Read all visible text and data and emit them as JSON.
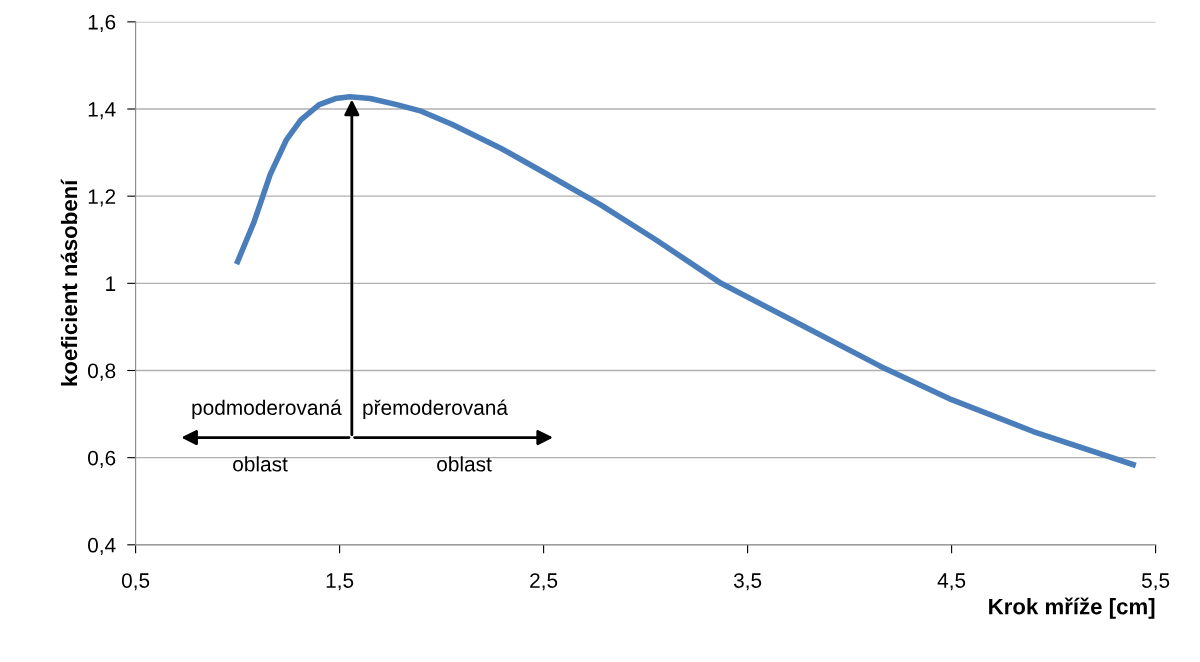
{
  "chart_data": {
    "type": "line",
    "xlabel": "Krok mříže [cm]",
    "ylabel": "koeficient násobení",
    "x": [
      1.0,
      1.08,
      1.16,
      1.24,
      1.31,
      1.4,
      1.48,
      1.55,
      1.65,
      1.78,
      1.9,
      2.05,
      2.29,
      2.5,
      2.78,
      3.05,
      3.37,
      3.7,
      4.15,
      4.5,
      4.9,
      5.39
    ],
    "series": [
      {
        "color": "#4a7ebb",
        "values": [
          1.05,
          1.14,
          1.25,
          1.33,
          1.375,
          1.41,
          1.424,
          1.428,
          1.424,
          1.41,
          1.395,
          1.365,
          1.31,
          1.255,
          1.18,
          1.1,
          1.0,
          0.92,
          0.81,
          0.733,
          0.66,
          0.584
        ]
      }
    ],
    "xlim": [
      0.5,
      5.5
    ],
    "xticks": [
      {
        "value": 0.5,
        "label": "0,5"
      },
      {
        "value": 1.5,
        "label": "1,5"
      },
      {
        "value": 2.5,
        "label": "2,5"
      },
      {
        "value": 3.5,
        "label": "3,5"
      },
      {
        "value": 4.5,
        "label": "4,5"
      },
      {
        "value": 5.5,
        "label": "5,5"
      }
    ],
    "ylim": [
      0.4,
      1.6
    ],
    "yticks": [
      {
        "value": 0.4,
        "label": "0,4"
      },
      {
        "value": 0.6,
        "label": "0,6"
      },
      {
        "value": 0.8,
        "label": "0,8"
      },
      {
        "value": 1,
        "label": "1"
      },
      {
        "value": 1.2,
        "label": "1,2"
      },
      {
        "value": 1.4,
        "label": "1,4"
      },
      {
        "value": 1.6,
        "label": "1,6"
      }
    ],
    "grid": "y",
    "marker": "none",
    "line_style": "solid",
    "annotations": [
      {
        "text": "podmoderovaná",
        "x": 1.56,
        "y": 1.428
      },
      "přemoderovaná",
      "oblast",
      "oblast"
    ]
  }
}
